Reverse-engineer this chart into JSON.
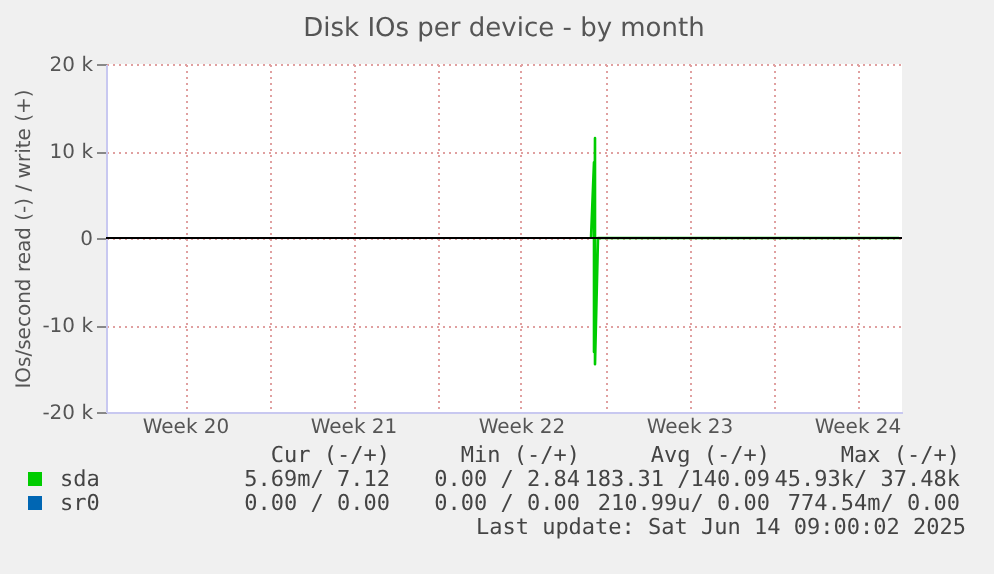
{
  "chart_data": {
    "type": "line",
    "title": "Disk IOs per device - by month",
    "ylabel": "IOs/second read (-) / write (+)",
    "xlim": [
      "2025-05-12T05:00",
      "2025-06-14T09:00"
    ],
    "ylim": [
      -20000,
      20000
    ],
    "yticks": [
      {
        "value": -20000,
        "label": "-20 k"
      },
      {
        "value": -10000,
        "label": "-10 k"
      },
      0,
      {
        "value": 10000,
        "label": "10 k"
      },
      {
        "value": 20000,
        "label": "20 k"
      }
    ],
    "xticks": [
      {
        "value": "2025-05-15T12:00",
        "label": "Week 20"
      },
      {
        "value": "2025-05-19",
        "label": null
      },
      {
        "value": "2025-05-22T12:00",
        "label": "Week 21"
      },
      {
        "value": "2025-05-26",
        "label": null
      },
      {
        "value": "2025-05-29T12:00",
        "label": "Week 22"
      },
      {
        "value": "2025-06-02",
        "label": null
      },
      {
        "value": "2025-06-05T12:00",
        "label": "Week 23"
      },
      {
        "value": "2025-06-09",
        "label": null
      },
      {
        "value": "2025-06-12T12:00",
        "label": "Week 24"
      }
    ],
    "grid": true,
    "legend": "bottom",
    "ref_lines": [
      {
        "axis": "y",
        "value": 0,
        "color": "#000000"
      }
    ],
    "series": [
      {
        "name": "sda",
        "color": "#00cc00",
        "x": [
          "2025-06-01T10:00",
          "2025-06-01T13:00",
          "2025-06-01T13:00",
          "2025-06-01T14:00",
          "2025-06-01T14:00",
          "2025-06-01T17:00",
          "2025-06-02T06:00",
          "2025-06-14T06:00"
        ],
        "values": [
          0,
          8700,
          -13100,
          11500,
          -14500,
          0,
          0,
          0
        ]
      },
      {
        "name": "sr0",
        "color": "#0066b3"
      }
    ],
    "annotations": [
      "Cur (-/+)",
      "Min (-/+)",
      "Avg (-/+)",
      "Max (-/+)",
      "5.69m/ 7.12",
      "0.00 / 2.84",
      "183.31 /140.09",
      "45.93k/ 37.48k",
      "0.00 / 0.00",
      "0.00 / 0.00",
      "210.99u/ 0.00",
      "774.54m/ 0.00",
      "Last update: Sat Jun 14 09:00:02 2025"
    ]
  }
}
